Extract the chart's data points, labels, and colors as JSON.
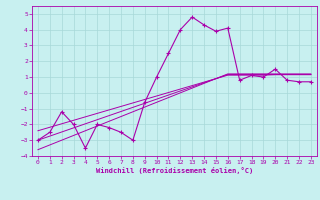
{
  "xlabel": "Windchill (Refroidissement éolien,°C)",
  "bg_color": "#c8f0f0",
  "grid_color": "#a8d8d8",
  "line_color": "#aa00aa",
  "xlim": [
    -0.5,
    23.5
  ],
  "ylim": [
    -4,
    5.5
  ],
  "xticks": [
    0,
    1,
    2,
    3,
    4,
    5,
    6,
    7,
    8,
    9,
    10,
    11,
    12,
    13,
    14,
    15,
    16,
    17,
    18,
    19,
    20,
    21,
    22,
    23
  ],
  "yticks": [
    -4,
    -3,
    -2,
    -1,
    0,
    1,
    2,
    3,
    4,
    5
  ],
  "data_x": [
    0,
    1,
    2,
    3,
    4,
    5,
    6,
    7,
    8,
    9,
    10,
    11,
    12,
    13,
    14,
    15,
    16,
    17,
    18,
    19,
    20,
    21,
    22,
    23
  ],
  "data_y": [
    -3,
    -2.5,
    -1.2,
    -2,
    -3.5,
    -2,
    -2.2,
    -2.5,
    -3,
    -0.6,
    1.0,
    2.5,
    4.0,
    4.8,
    4.3,
    3.9,
    4.1,
    0.8,
    1.1,
    1.0,
    1.5,
    0.8,
    0.7,
    0.7
  ],
  "reg_center": [
    -3.0,
    -2.74,
    -2.48,
    -2.22,
    -1.96,
    -1.7,
    -1.44,
    -1.18,
    -0.92,
    -0.66,
    -0.4,
    -0.14,
    0.12,
    0.38,
    0.64,
    0.9,
    1.16,
    1.16,
    1.16,
    1.16,
    1.16,
    1.16,
    1.16,
    1.16
  ],
  "reg_upper": [
    -2.4,
    -2.18,
    -1.96,
    -1.74,
    -1.52,
    -1.3,
    -1.08,
    -0.86,
    -0.64,
    -0.42,
    -0.2,
    0.02,
    0.24,
    0.46,
    0.68,
    0.9,
    1.12,
    1.12,
    1.12,
    1.12,
    1.15,
    1.15,
    1.15,
    1.15
  ],
  "reg_lower": [
    -3.6,
    -3.3,
    -3.0,
    -2.7,
    -2.4,
    -2.1,
    -1.8,
    -1.5,
    -1.2,
    -0.9,
    -0.6,
    -0.3,
    0.0,
    0.3,
    0.6,
    0.9,
    1.2,
    1.2,
    1.2,
    1.2,
    1.2,
    1.2,
    1.2,
    1.2
  ]
}
